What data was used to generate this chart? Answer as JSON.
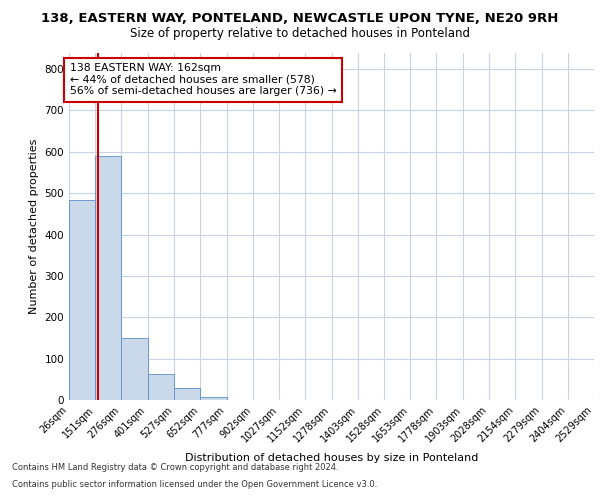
{
  "title1": "138, EASTERN WAY, PONTELAND, NEWCASTLE UPON TYNE, NE20 9RH",
  "title2": "Size of property relative to detached houses in Ponteland",
  "xlabel": "Distribution of detached houses by size in Ponteland",
  "ylabel": "Number of detached properties",
  "property_size": 162,
  "pct_smaller": 44,
  "n_smaller": 578,
  "pct_larger": 56,
  "n_larger": 736,
  "bar_color": "#c9d9ea",
  "bar_edge_color": "#5b8fc9",
  "vline_color": "#cc0000",
  "annotation_box_color": "#cc0000",
  "grid_color": "#c8d4e3",
  "footer1": "Contains HM Land Registry data © Crown copyright and database right 2024.",
  "footer2": "Contains public sector information licensed under the Open Government Licence v3.0.",
  "bin_edges": [
    26,
    151,
    276,
    401,
    527,
    652,
    777,
    902,
    1027,
    1152,
    1278,
    1403,
    1528,
    1653,
    1778,
    1903,
    2028,
    2154,
    2279,
    2404,
    2529
  ],
  "bar_heights": [
    483,
    590,
    150,
    62,
    30,
    7,
    0,
    0,
    0,
    0,
    0,
    0,
    0,
    0,
    0,
    0,
    0,
    0,
    0,
    0
  ],
  "ylim": [
    0,
    840
  ],
  "yticks": [
    0,
    100,
    200,
    300,
    400,
    500,
    600,
    700,
    800
  ],
  "title1_fontsize": 9.5,
  "title2_fontsize": 8.5,
  "ylabel_fontsize": 8,
  "xlabel_fontsize": 8,
  "tick_fontsize": 7,
  "footer_fontsize": 6
}
